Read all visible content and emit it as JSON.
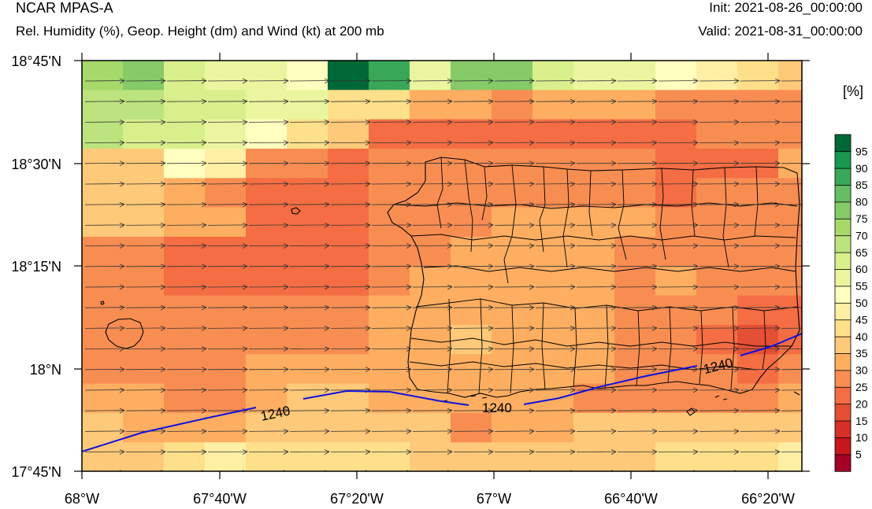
{
  "header": {
    "left_title": "NCAR MPAS-A",
    "left_subtitle": "Rel. Humidity (%), Geop. Height (dm) and Wind (kt) at 200 mb",
    "right_title": "Init: 2021-08-26_00:00:00",
    "right_subtitle": "Valid: 2021-08-31_00:00:00"
  },
  "map": {
    "lon_ticks": [
      "68°W",
      "67°40'W",
      "67°20'W",
      "67°W",
      "66°40'W",
      "66°20'W"
    ],
    "lat_ticks": [
      "18°45'N",
      "18°30'N",
      "18°15'N",
      "18°N",
      "17°45'N"
    ]
  },
  "contour": {
    "labels": [
      "1240",
      "1240",
      "1240"
    ],
    "color": "#1010dd"
  },
  "colorbar": {
    "unit_label": "[%]",
    "levels": [
      "5",
      "10",
      "15",
      "20",
      "25",
      "30",
      "35",
      "40",
      "45",
      "50",
      "55",
      "60",
      "65",
      "70",
      "75",
      "80",
      "85",
      "90",
      "95"
    ],
    "colors": [
      "#a50026",
      "#c6171d",
      "#d73027",
      "#e54f35",
      "#f46d43",
      "#f88d52",
      "#fdae61",
      "#fec979",
      "#fee08b",
      "#ffefa5",
      "#ffffbf",
      "#eaf69f",
      "#d9ef8b",
      "#bde37e",
      "#a6d96a",
      "#85ca67",
      "#66bd63",
      "#39a758",
      "#1a9850",
      "#006837"
    ]
  },
  "chart_data": {
    "type": "heatmap",
    "title": "Rel. Humidity (%), Geop. Height (dm) and Wind (kt) at 200 mb",
    "x_ticks": [
      "68°W",
      "67°40'W",
      "67°20'W",
      "67°W",
      "66°40'W",
      "66°20'W"
    ],
    "y_ticks": [
      "18°45'N",
      "18°30'N",
      "18°15'N",
      "18°N",
      "17°45'N"
    ],
    "xlim": [
      -68.0,
      -66.25
    ],
    "ylim": [
      17.75,
      18.75
    ],
    "colorbar_unit": "[%]",
    "rh_grid_rows_north_to_south": [
      [
        70,
        75,
        60,
        55,
        55,
        50,
        95,
        85,
        55,
        75,
        75,
        60,
        55,
        55,
        50,
        45,
        40,
        35
      ],
      [
        65,
        65,
        60,
        60,
        55,
        55,
        40,
        40,
        30,
        30,
        25,
        30,
        30,
        30,
        25,
        25,
        25,
        25
      ],
      [
        65,
        60,
        60,
        55,
        50,
        40,
        35,
        20,
        20,
        20,
        20,
        20,
        20,
        20,
        20,
        25,
        25,
        25
      ],
      [
        35,
        35,
        50,
        45,
        25,
        25,
        20,
        25,
        25,
        25,
        25,
        25,
        25,
        25,
        20,
        20,
        20,
        30
      ],
      [
        35,
        35,
        30,
        25,
        20,
        20,
        20,
        25,
        25,
        25,
        25,
        25,
        25,
        25,
        20,
        25,
        25,
        25
      ],
      [
        35,
        35,
        30,
        30,
        20,
        20,
        20,
        25,
        25,
        25,
        30,
        30,
        30,
        30,
        25,
        25,
        25,
        25
      ],
      [
        25,
        25,
        20,
        20,
        20,
        20,
        20,
        25,
        25,
        30,
        30,
        30,
        30,
        25,
        25,
        25,
        25,
        25
      ],
      [
        25,
        25,
        20,
        20,
        20,
        20,
        20,
        25,
        30,
        30,
        30,
        30,
        30,
        25,
        30,
        25,
        25,
        25
      ],
      [
        25,
        25,
        25,
        25,
        25,
        25,
        25,
        30,
        30,
        30,
        30,
        30,
        30,
        25,
        25,
        25,
        20,
        20
      ],
      [
        25,
        25,
        25,
        25,
        25,
        25,
        25,
        30,
        30,
        35,
        30,
        30,
        30,
        25,
        25,
        20,
        15,
        20
      ],
      [
        25,
        25,
        25,
        25,
        30,
        30,
        30,
        30,
        30,
        30,
        30,
        30,
        30,
        25,
        25,
        25,
        20,
        25
      ],
      [
        30,
        30,
        25,
        25,
        30,
        35,
        35,
        30,
        30,
        30,
        30,
        30,
        25,
        25,
        25,
        25,
        25,
        30
      ],
      [
        35,
        30,
        30,
        30,
        35,
        35,
        35,
        35,
        35,
        25,
        30,
        30,
        35,
        35,
        35,
        35,
        35,
        35
      ],
      [
        35,
        35,
        40,
        45,
        40,
        40,
        40,
        40,
        35,
        35,
        35,
        35,
        35,
        35,
        40,
        40,
        40,
        45
      ]
    ],
    "geopotential_height_contour_dm": 1240,
    "wind_direction": "westerly"
  }
}
